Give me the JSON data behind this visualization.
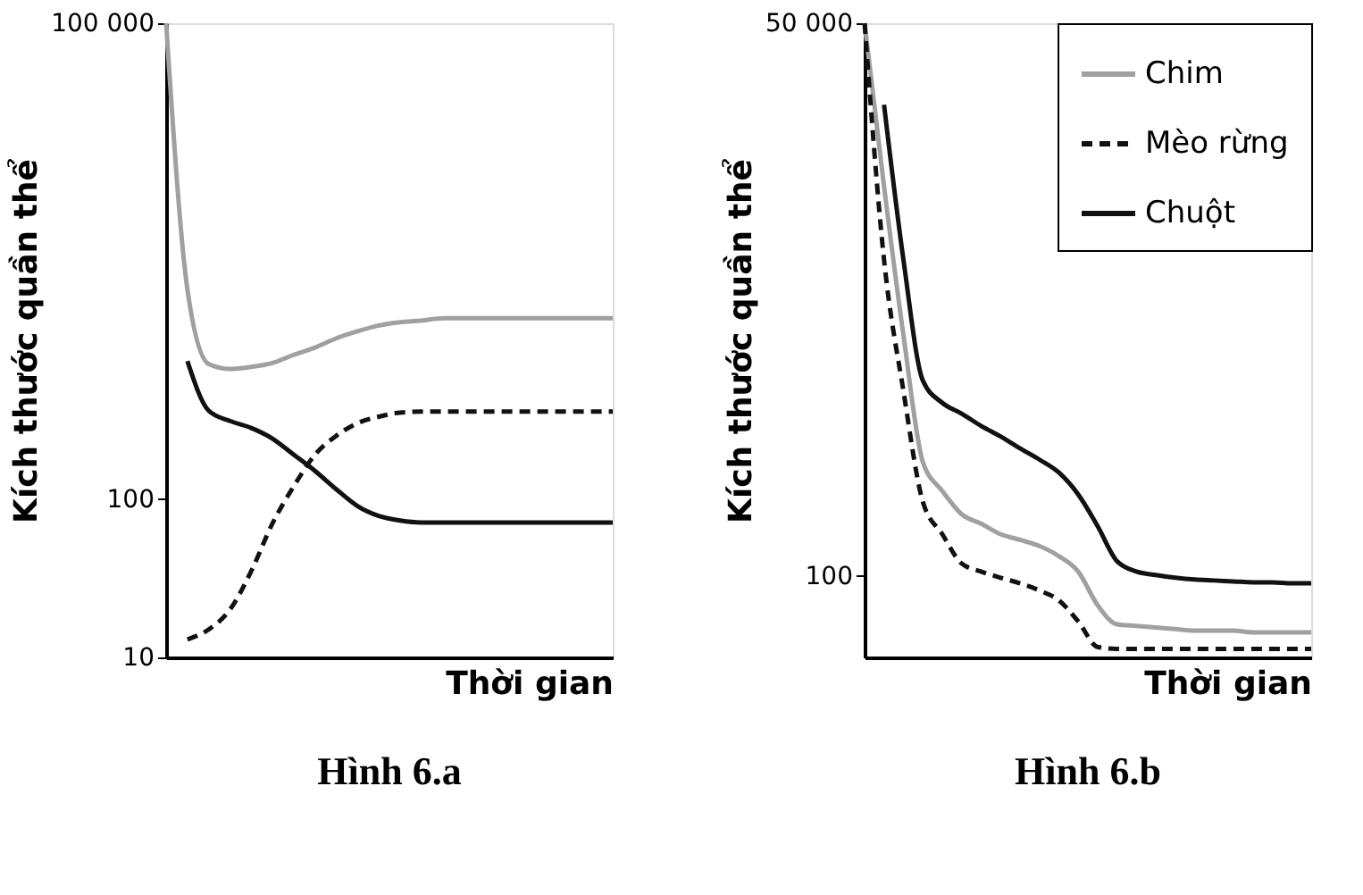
{
  "chart_data": [
    {
      "type": "line",
      "title": "Hình 6.a",
      "xlabel": "Thời gian",
      "ylabel": "Kích thước quần thể",
      "log": "y",
      "ylim": [
        10,
        100000
      ],
      "yticks": [
        10,
        100,
        {
          "value": 100000,
          "label": "100 000"
        }
      ],
      "tick_labels": "y",
      "grid": false,
      "legend": false,
      "marker": "none",
      "categories": [
        null,
        null,
        null,
        null,
        null,
        null,
        null,
        null,
        null,
        null,
        null,
        null,
        null,
        null,
        null,
        null,
        null,
        null,
        null,
        null,
        null,
        null
      ],
      "series": [
        {
          "color": "#a0a0a0",
          "line_style": "solid",
          "values": [
            100000,
            2100,
            710,
            660,
            680,
            720,
            810,
            900,
            1030,
            1140,
            1240,
            1300,
            1330,
            1380,
            1380,
            1380,
            1380,
            1380,
            1380,
            1380,
            1380,
            1380
          ]
        },
        {
          "color": "#111111",
          "line_style": "dashed",
          "values": [
            null,
            13,
            15,
            20,
            35,
            70,
            120,
            190,
            250,
            300,
            330,
            350,
            355,
            355,
            355,
            355,
            355,
            355,
            355,
            355,
            355,
            355
          ]
        },
        {
          "color": "#111111",
          "line_style": "solid",
          "values": [
            null,
            740,
            360,
            310,
            280,
            240,
            190,
            150,
            115,
            90,
            78,
            73,
            71,
            71,
            71,
            71,
            71,
            71,
            71,
            71,
            71,
            71
          ]
        }
      ]
    },
    {
      "type": "line",
      "title": "Hình 6.b",
      "xlabel": "Thời gian",
      "ylabel": "Kích thước quần thể",
      "log": "y",
      "ylim": [
        40,
        50000
      ],
      "yticks": [
        100,
        {
          "value": 50000,
          "label": "50 000"
        }
      ],
      "tick_labels": "y",
      "grid": false,
      "legend": "top right",
      "marker": "none",
      "categories": [
        null,
        null,
        null,
        null,
        null,
        null,
        null,
        null,
        null,
        null,
        null,
        null,
        null,
        null,
        null,
        null,
        null,
        null,
        null,
        null,
        null,
        null,
        null,
        null
      ],
      "series": [
        {
          "name": "Chim",
          "color": "#a0a0a0",
          "line_style": "solid",
          "values": [
            50000,
            8000,
            1500,
            360,
            260,
            200,
            180,
            160,
            150,
            140,
            125,
            105,
            72,
            58,
            57,
            56,
            55,
            54,
            54,
            54,
            53,
            53,
            53,
            53
          ]
        },
        {
          "name": "Mèo rừng",
          "color": "#111111",
          "line_style": "dashed",
          "values": [
            50000,
            3500,
            800,
            230,
            160,
            115,
            105,
            98,
            92,
            85,
            76,
            60,
            45,
            44,
            44,
            44,
            44,
            44,
            44,
            44,
            44,
            44,
            44,
            44
          ]
        },
        {
          "name": "Chuột",
          "color": "#111111",
          "line_style": "solid",
          "values": [
            null,
            20000,
            3500,
            900,
            700,
            620,
            540,
            480,
            420,
            370,
            320,
            250,
            175,
            118,
            105,
            101,
            98,
            96,
            95,
            94,
            93,
            93,
            92,
            92
          ]
        }
      ]
    }
  ]
}
